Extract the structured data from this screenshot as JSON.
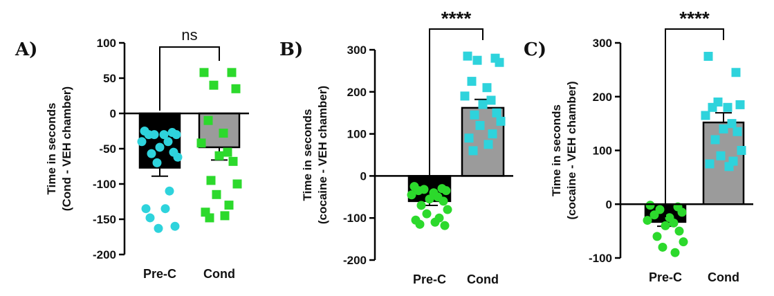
{
  "colors": {
    "cyan": "#2ed3dc",
    "green": "#2cd92c",
    "black": "#000000",
    "gray": "#9b9b9b"
  },
  "chart_data": [
    {
      "type": "bar",
      "panel": "A)",
      "categories": [
        "Pre-C",
        "Cond"
      ],
      "ylabel_line1": "Time in seconds",
      "ylabel_line2": "(Cond - VEH chamber)",
      "ylim": [
        -200,
        100
      ],
      "yticks": [
        100,
        50,
        0,
        -50,
        -100,
        -150,
        -200
      ],
      "significance": "ns",
      "bars": [
        {
          "category": "Pre-C",
          "mean": -77,
          "error": 12,
          "bar_color": "#000000",
          "point_color": "#2ed3dc",
          "point_shape": "circle",
          "points": [
            -25,
            -27,
            -30,
            -30,
            -30,
            -30,
            -40,
            -40,
            -48,
            -55,
            -57,
            -62,
            -70,
            -110,
            -135,
            -135,
            -148,
            -160,
            -163
          ]
        },
        {
          "category": "Cond",
          "mean": -48,
          "error": 18,
          "bar_color": "#9b9b9b",
          "point_color": "#2cd92c",
          "point_shape": "square",
          "points": [
            58,
            58,
            40,
            35,
            -10,
            -28,
            -42,
            -55,
            -60,
            -68,
            -95,
            -100,
            -115,
            -130,
            -140,
            -145,
            -148
          ]
        }
      ]
    },
    {
      "type": "bar",
      "panel": "B)",
      "categories": [
        "Pre-C",
        "Cond"
      ],
      "ylabel_line1": "Time in seconds",
      "ylabel_line2": "(cocaine - VEH chamber)",
      "ylim": [
        -200,
        300
      ],
      "yticks": [
        300,
        200,
        100,
        0,
        -100,
        -200
      ],
      "significance": "****",
      "bars": [
        {
          "category": "Pre-C",
          "mean": -60,
          "error": 10,
          "bar_color": "#000000",
          "point_color": "#2cd92c",
          "point_shape": "circle",
          "points": [
            -25,
            -30,
            -32,
            -35,
            -35,
            -40,
            -45,
            -50,
            -55,
            -60,
            -70,
            -80,
            -90,
            -100,
            -105,
            -110,
            -115,
            -118
          ]
        },
        {
          "category": "Cond",
          "mean": 162,
          "error": 20,
          "bar_color": "#9b9b9b",
          "point_color": "#2ed3dc",
          "point_shape": "square",
          "points": [
            285,
            280,
            275,
            270,
            225,
            210,
            190,
            180,
            170,
            150,
            145,
            130,
            120,
            100,
            90,
            75,
            60
          ]
        }
      ]
    },
    {
      "type": "bar",
      "panel": "C)",
      "categories": [
        "Pre-C",
        "Cond"
      ],
      "ylabel_line1": "Time in seconds",
      "ylabel_line2": "(cocaine - VEH chamber)",
      "ylim": [
        -100,
        300
      ],
      "yticks": [
        300,
        200,
        100,
        0,
        -100
      ],
      "significance": "****",
      "bars": [
        {
          "category": "Pre-C",
          "mean": -33,
          "error": 8,
          "bar_color": "#000000",
          "point_color": "#2cd92c",
          "point_shape": "circle",
          "points": [
            -2,
            -5,
            -10,
            -15,
            -20,
            -25,
            -30,
            -35,
            -40,
            -50,
            -60,
            -70,
            -80,
            -90
          ]
        },
        {
          "category": "Cond",
          "mean": 152,
          "error": 18,
          "bar_color": "#9b9b9b",
          "point_color": "#2ed3dc",
          "point_shape": "square",
          "points": [
            275,
            245,
            190,
            185,
            180,
            180,
            165,
            150,
            140,
            135,
            120,
            100,
            90,
            80,
            75,
            70
          ]
        }
      ]
    }
  ]
}
